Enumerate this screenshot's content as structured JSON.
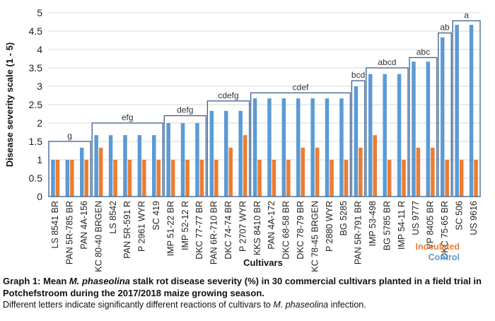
{
  "chart_data": {
    "type": "bar",
    "ylabel": "Disease severity scale (1 - 5)",
    "xlabel": "Cultivars",
    "ylim": [
      0,
      5
    ],
    "yticks": [
      0,
      0.5,
      1,
      1.5,
      2,
      2.5,
      3,
      3.5,
      4,
      4.5,
      5
    ],
    "grid": true,
    "legend_position": "bottom-right",
    "categories": [
      "LS 8541 BR",
      "PAN 5R-785 BR",
      "PAN 4A-156",
      "DKC 80-40 BRGEN",
      "LS 8542",
      "PAN 5R-591 R",
      "P 2961 WYR",
      "SC 419",
      "IMP 51-22 BR",
      "IMP 52-12 R",
      "DKC 77-77 BR",
      "PAN 6R-710 BR",
      "DKC 74-74 BR",
      "P 2707 WYR",
      "KKS 8410 BR",
      "PAN 4A-172",
      "DKC 68-58 BR",
      "DKC 78-79 BR",
      "DKC 78-45 BRGEN",
      "P 2880 WYR",
      "BG 5285",
      "PAN 5R-791 BR",
      "IMP 53-498",
      "BG 5785 BR",
      "IMP 54-11 R",
      "US 9777",
      "VP 8405 BR",
      "DKC 75-65 BR",
      "SC 506",
      "US 9616"
    ],
    "series": [
      {
        "name": "Control",
        "color": "#5b9bd5",
        "values": [
          1,
          1,
          1.33,
          1.67,
          1.67,
          1.67,
          1.67,
          1.67,
          2,
          2,
          2,
          2.33,
          2.33,
          2.33,
          2.67,
          2.67,
          2.67,
          2.67,
          2.67,
          2.67,
          2.67,
          3,
          3.33,
          3.33,
          3.33,
          3.67,
          3.67,
          4.33,
          4.67,
          4.67
        ]
      },
      {
        "name": "Inoculated",
        "color": "#ed7d31",
        "values": [
          1,
          1,
          1,
          1.33,
          1,
          1,
          1,
          1,
          1,
          1,
          1,
          1,
          1.33,
          1.67,
          1,
          1,
          1,
          1.33,
          1.33,
          1,
          1,
          1.33,
          1.67,
          1,
          1,
          1.33,
          1.33,
          1,
          1,
          1
        ]
      }
    ],
    "groups": [
      {
        "label": "g",
        "start": 0,
        "end": 2,
        "top": 1.5
      },
      {
        "label": "efg",
        "start": 3,
        "end": 7,
        "top": 2.0
      },
      {
        "label": "defg",
        "start": 8,
        "end": 10,
        "top": 2.2
      },
      {
        "label": "cdefg",
        "start": 11,
        "end": 13,
        "top": 2.6
      },
      {
        "label": "cdef",
        "start": 14,
        "end": 20,
        "top": 2.82
      },
      {
        "label": "bcd",
        "start": 21,
        "end": 21,
        "top": 3.15
      },
      {
        "label": "abcd",
        "start": 22,
        "end": 24,
        "top": 3.5
      },
      {
        "label": "abc",
        "start": 25,
        "end": 26,
        "top": 3.78
      },
      {
        "label": "ab",
        "start": 27,
        "end": 27,
        "top": 4.45
      },
      {
        "label": "a",
        "start": 28,
        "end": 29,
        "top": 4.78
      }
    ]
  },
  "legend": {
    "inoculated": "Inoculated",
    "control": "Control"
  },
  "caption": {
    "line1_part1": "Graph 1: Mean ",
    "line1_italic": "M. phaseolina",
    "line1_part2": " stalk rot disease severity (%) in 30 commercial cultivars planted in a field trial in Potchefstroom during the 2017/2018 maize growing season.",
    "line2_part1": "Different letters indicate significantly different reactions of cultivars to ",
    "line2_italic": "M. phaseolina",
    "line2_part2": " infection."
  }
}
